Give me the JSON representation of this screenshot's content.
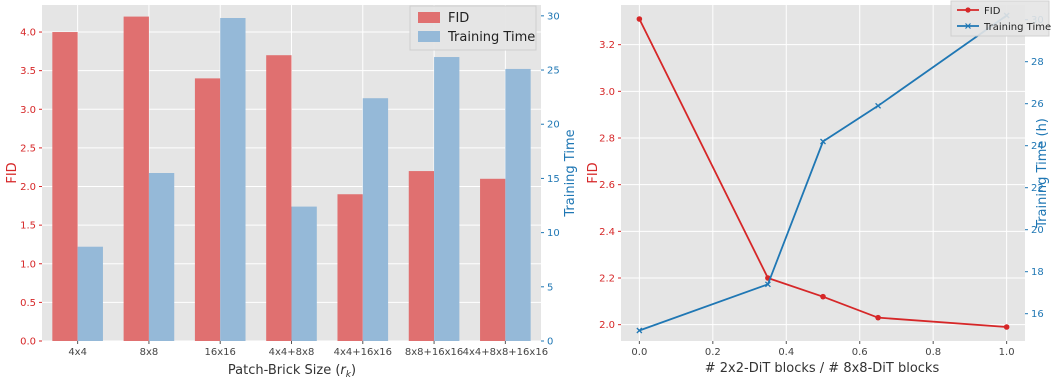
{
  "colors": {
    "fid": "#d62728",
    "time": "#1f77b4",
    "fid_bar": "#e07070",
    "time_bar": "#95b9d8",
    "panel_bg": "#e5e5e5",
    "grid": "#ffffff"
  },
  "chart_data": [
    {
      "type": "bar",
      "xlabel": "Patch-Brick Size (r_k)",
      "xlabel_main": "Patch-Brick Size (",
      "xlabel_var": "r",
      "xlabel_sub": "k",
      "xlabel_end": ")",
      "ylabel_left": "FID",
      "ylabel_right": "Training Time",
      "categories": [
        "4x4",
        "8x8",
        "16x16",
        "4x4+8x8",
        "4x4+16x16",
        "8x8+16x16",
        "4x4+8x8+16x16"
      ],
      "series": [
        {
          "name": "FID",
          "axis": "left",
          "values": [
            4.0,
            4.2,
            3.4,
            3.7,
            1.9,
            2.2,
            2.1
          ]
        },
        {
          "name": "Training Time",
          "axis": "right",
          "values": [
            8.7,
            15.5,
            29.8,
            12.4,
            22.4,
            26.2,
            25.1
          ]
        }
      ],
      "ylim_left": [
        0,
        4.35
      ],
      "yticks_left": [
        "0.0",
        "0.5",
        "1.0",
        "1.5",
        "2.0",
        "2.5",
        "3.0",
        "3.5",
        "4.0"
      ],
      "ylim_right": [
        0,
        31
      ],
      "yticks_right": [
        "0",
        "5",
        "10",
        "15",
        "20",
        "25",
        "30"
      ],
      "grid": true,
      "legend_position": "top-right"
    },
    {
      "type": "line",
      "xlabel": "# 2x2-DiT blocks / # 8x8-DiT blocks",
      "ylabel_left": "FID",
      "ylabel_right": "Training Time (h)",
      "x": [
        0.0,
        0.35,
        0.5,
        0.65,
        1.0
      ],
      "series": [
        {
          "name": "FID",
          "axis": "left",
          "marker": "circle",
          "values": [
            3.31,
            2.2,
            2.12,
            2.03,
            1.99
          ]
        },
        {
          "name": "Training Time",
          "axis": "right",
          "marker": "x",
          "values": [
            15.2,
            17.4,
            24.2,
            25.9,
            30.2
          ]
        }
      ],
      "xlim": [
        -0.05,
        1.05
      ],
      "xticks": [
        "0.0",
        "0.2",
        "0.4",
        "0.6",
        "0.8",
        "1.0"
      ],
      "ylim_left": [
        1.93,
        3.37
      ],
      "yticks_left": [
        "2.0",
        "2.2",
        "2.4",
        "2.6",
        "2.8",
        "3.0",
        "3.2"
      ],
      "ylim_right": [
        14.7,
        30.7
      ],
      "yticks_right": [
        "16",
        "18",
        "20",
        "22",
        "24",
        "26",
        "28",
        "30"
      ],
      "grid": true,
      "legend_position": "top-right"
    }
  ]
}
